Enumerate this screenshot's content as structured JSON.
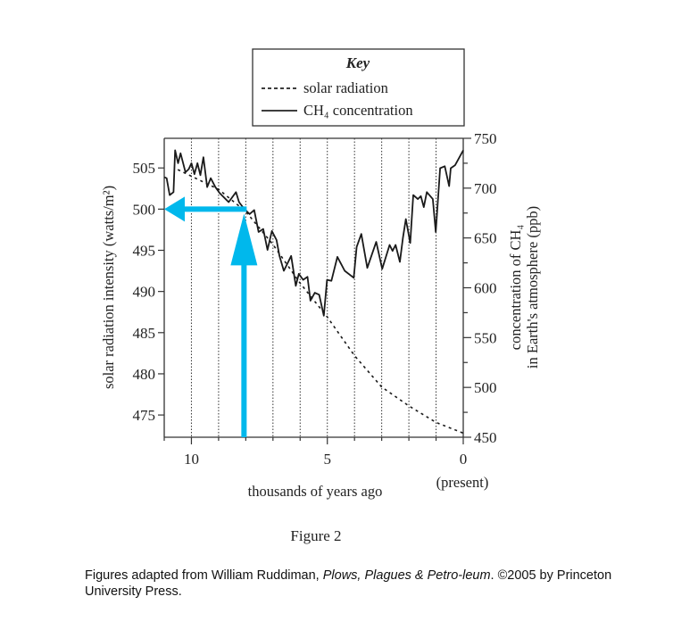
{
  "chart_data": {
    "type": "line",
    "figure_label": "Figure 2",
    "xlabel": "thousands of years ago",
    "x_note": "(present)",
    "xlim": [
      11,
      0
    ],
    "x_ticks": [
      10,
      5,
      0
    ],
    "ylabel_left": "solar radiation intensity (watts/m²)",
    "ylim_left": [
      472.3,
      508.6
    ],
    "y_ticks_left": [
      505,
      500,
      495,
      490,
      485,
      480,
      475
    ],
    "ylabel_right_line1": "concentration of CH₄",
    "ylabel_right_line2": "in Earth's atmosphere (ppb)",
    "ylim_right": [
      450,
      750
    ],
    "y_ticks_right": [
      750,
      700,
      650,
      600,
      550,
      500,
      450
    ],
    "legend": {
      "title": "Key",
      "entries": [
        "solar radiation",
        "CH₄ concentration"
      ],
      "placement": "top"
    },
    "series": [
      {
        "name": "solar radiation",
        "axis": "left",
        "style": "dashed",
        "x": [
          10.5,
          10,
          9,
          8,
          7,
          6,
          5,
          4,
          3,
          2,
          1,
          0
        ],
        "y": [
          504.8,
          504,
          502.4,
          499.7,
          495.7,
          491,
          486.9,
          482.2,
          478.4,
          476.1,
          474.1,
          472.8
        ]
      },
      {
        "name": "CH₄ concentration",
        "axis": "right",
        "style": "solid",
        "x": [
          11.0,
          10.91,
          10.8,
          10.66,
          10.6,
          10.49,
          10.4,
          10.22,
          10.1,
          10.0,
          9.89,
          9.78,
          9.67,
          9.56,
          9.42,
          9.29,
          9.12,
          8.96,
          8.63,
          8.36,
          8.25,
          8.08,
          7.86,
          7.69,
          7.53,
          7.36,
          7.2,
          7.04,
          6.87,
          6.76,
          6.6,
          6.33,
          6.16,
          6.05,
          5.89,
          5.73,
          5.62,
          5.46,
          5.3,
          5.13,
          5.01,
          4.85,
          4.63,
          4.36,
          4.03,
          3.92,
          3.75,
          3.53,
          3.2,
          2.98,
          2.71,
          2.6,
          2.49,
          2.33,
          2.22,
          2.11,
          1.95,
          1.84,
          1.67,
          1.56,
          1.45,
          1.34,
          1.12,
          1.01,
          0.85,
          0.68,
          0.52,
          0.46,
          0.3,
          0
        ],
        "y": [
          711,
          710,
          693,
          696,
          738,
          725,
          735,
          716,
          719,
          725,
          714,
          725,
          713,
          731,
          701,
          710,
          701,
          695,
          686,
          696,
          686,
          680,
          674,
          678,
          656,
          659,
          638,
          657,
          648,
          632,
          617,
          632,
          602,
          614,
          608,
          611,
          587,
          595,
          593,
          572,
          608,
          607,
          631,
          617,
          610,
          641,
          654,
          620,
          646,
          619,
          643,
          637,
          643,
          626,
          650,
          669,
          645,
          693,
          689,
          692,
          681,
          696,
          689,
          656,
          720,
          722,
          702,
          720,
          723,
          738
        ]
      }
    ],
    "annotation": {
      "arrow_x": 8,
      "arrow_y": 500,
      "color": "#00b8ec"
    },
    "grid": "vertical dotted at each thousand years"
  },
  "caption": {
    "prefix": "Figures adapted from William Ruddiman, ",
    "title": "Plows, Plagues & Petro-leum",
    "suffix": ". ©2005 by Princeton University Press."
  }
}
